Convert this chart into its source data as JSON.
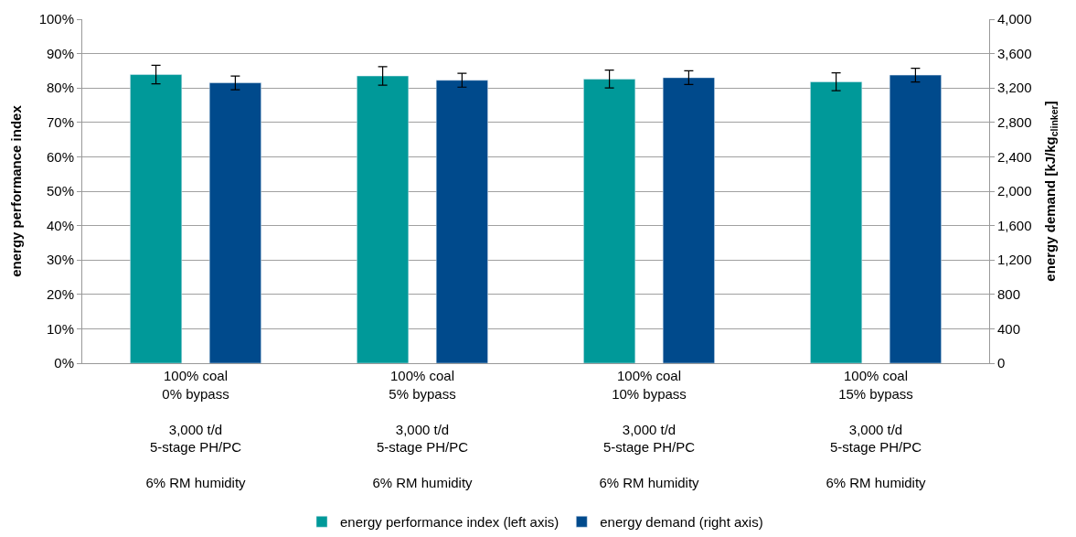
{
  "chart_data": {
    "type": "bar",
    "ylabel": "energy performance index",
    "y2label": "energy demand [kJ/kg$_{clinker}$]",
    "categories": [
      "100% coal\n0% bypass\n\n3,000 t/d\n5-stage PH/PC\n\n6% RM humidity",
      "100% coal\n5% bypass\n\n3,000 t/d\n5-stage PH/PC\n\n6% RM humidity",
      "100% coal\n10% bypass\n\n3,000 t/d\n5-stage PH/PC\n\n6% RM humidity",
      "100% coal\n15% bypass\n\n3,000 t/d\n5-stage PH/PC\n\n6% RM humidity"
    ],
    "series": [
      {
        "name": "energy performance index (left axis)",
        "color": "#009999",
        "values": [
          83.9,
          83.5,
          82.6,
          81.8
        ],
        "errors": [
          2.7,
          2.7,
          2.6,
          2.6
        ]
      },
      {
        "name": "energy demand (right axis)",
        "color": "#004a8c",
        "axis": "y2",
        "values": [
          3260,
          3290,
          3320,
          3350
        ],
        "errors": [
          80,
          80,
          80,
          80
        ]
      }
    ],
    "ylim": [
      0,
      100
    ],
    "yticks": [
      {
        "value": 0,
        "label": "0%"
      },
      {
        "value": 10,
        "label": "10%"
      },
      {
        "value": 20,
        "label": "20%"
      },
      {
        "value": 30,
        "label": "30%"
      },
      {
        "value": 40,
        "label": "40%"
      },
      {
        "value": 50,
        "label": "50%"
      },
      {
        "value": 60,
        "label": "60%"
      },
      {
        "value": 70,
        "label": "70%"
      },
      {
        "value": 80,
        "label": "80%"
      },
      {
        "value": 90,
        "label": "90%"
      },
      {
        "value": 100,
        "label": "100%"
      }
    ],
    "y2lim": [
      0,
      4000
    ],
    "y2ticks": [
      0,
      400,
      800,
      {
        "value": 1200,
        "label": "1,200"
      },
      {
        "value": 1600,
        "label": "1,600"
      },
      {
        "value": 2000,
        "label": "2,000"
      },
      {
        "value": 2400,
        "label": "2,400"
      },
      {
        "value": 2800,
        "label": "2,800"
      },
      {
        "value": 3200,
        "label": "3,200"
      },
      {
        "value": 3600,
        "label": "3,600"
      },
      {
        "value": 4000,
        "label": "4,000"
      }
    ],
    "grid": "y",
    "legend": "bottom"
  }
}
